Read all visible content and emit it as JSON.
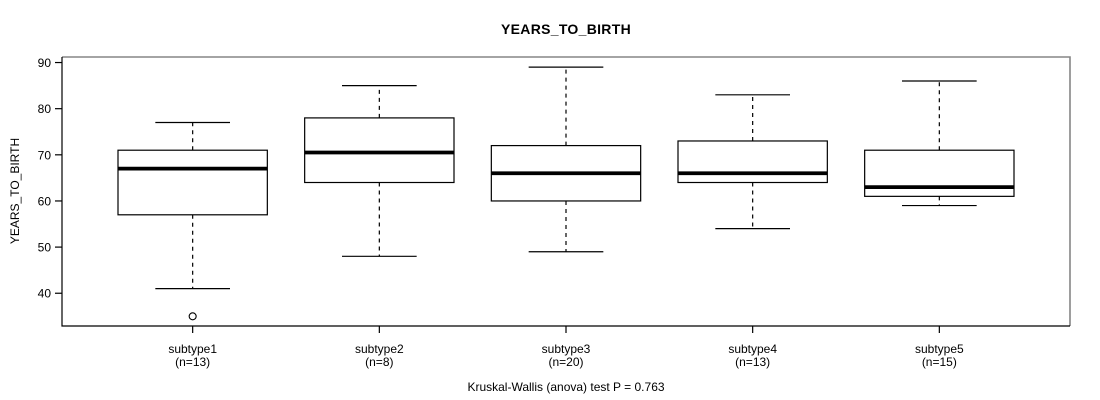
{
  "chart_data": {
    "type": "boxplot",
    "title": "YEARS_TO_BIRTH",
    "ylabel": "YEARS_TO_BIRTH",
    "xlabel": "",
    "footer": "Kruskal-Wallis (anova) test P = 0.763",
    "y_ticks": [
      40,
      50,
      60,
      70,
      80,
      90
    ],
    "ylim": [
      32.9,
      91.2
    ],
    "grid": false,
    "legend": null,
    "boxes": [
      {
        "category": "subtype1",
        "count_label": "(n=13)",
        "n": 13,
        "whisker_low": 41,
        "q1": 57,
        "median": 67,
        "q3": 71,
        "whisker_high": 77,
        "outliers": [
          35
        ]
      },
      {
        "category": "subtype2",
        "count_label": "(n=8)",
        "n": 8,
        "whisker_low": 48,
        "q1": 64,
        "median": 70.5,
        "q3": 78,
        "whisker_high": 85,
        "outliers": []
      },
      {
        "category": "subtype3",
        "count_label": "(n=20)",
        "n": 20,
        "whisker_low": 49,
        "q1": 60,
        "median": 66,
        "q3": 72,
        "whisker_high": 89,
        "outliers": []
      },
      {
        "category": "subtype4",
        "count_label": "(n=13)",
        "n": 13,
        "whisker_low": 54,
        "q1": 64,
        "median": 66,
        "q3": 73,
        "whisker_high": 83,
        "outliers": []
      },
      {
        "category": "subtype5",
        "count_label": "(n=15)",
        "n": 15,
        "whisker_low": 59,
        "q1": 61,
        "median": 63,
        "q3": 71,
        "whisker_high": 86,
        "outliers": []
      }
    ],
    "colors": {
      "background": "#ffffff",
      "box_fill": "#ffffff",
      "line": "#000000",
      "frame_top_right": "#858585"
    }
  }
}
